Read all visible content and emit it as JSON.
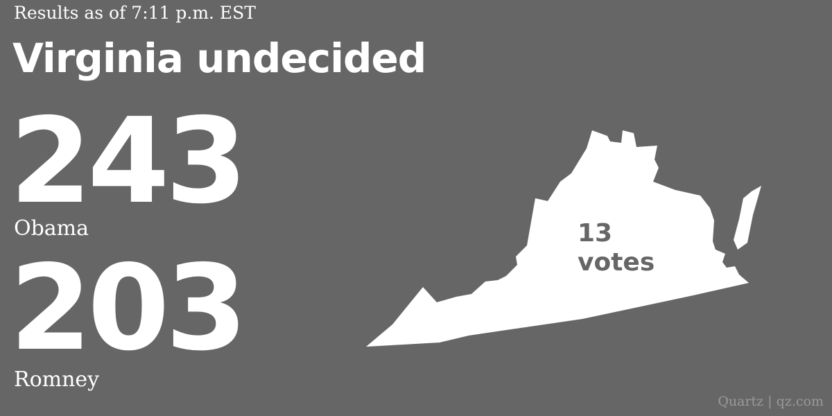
{
  "colors": {
    "background": "#666666",
    "foreground": "#ffffff",
    "credit": "#9a9a9a"
  },
  "header": {
    "timestamp": "Results as of 7:11 p.m. EST",
    "headline": "Virginia undecided"
  },
  "results": [
    {
      "votes": "243",
      "candidate": "Obama"
    },
    {
      "votes": "203",
      "candidate": "Romney"
    }
  ],
  "state": {
    "shape_icon": "virginia-state-icon",
    "electoral_votes": "13",
    "votes_label": "votes"
  },
  "credit": "Quartz | qz.com"
}
